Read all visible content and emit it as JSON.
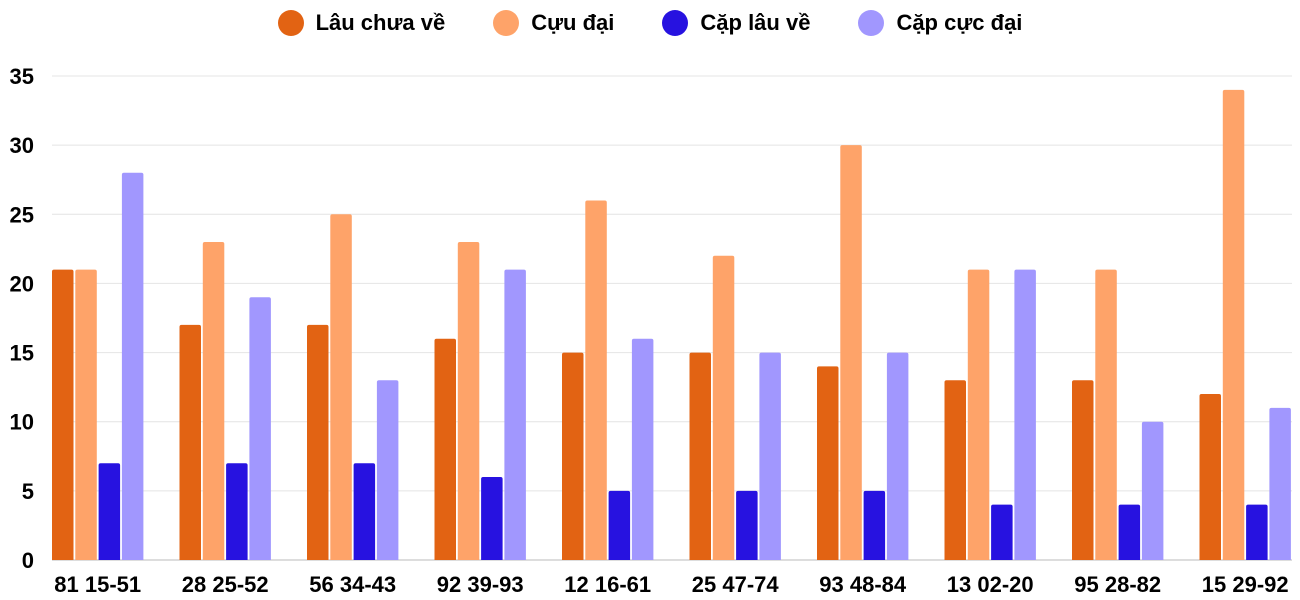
{
  "chart_data": {
    "type": "bar",
    "categories": [
      "81 15-51",
      "28 25-52",
      "56 34-43",
      "92 39-93",
      "12 16-61",
      "25 47-74",
      "93 48-84",
      "13 02-20",
      "95 28-82",
      "15 29-92"
    ],
    "series": [
      {
        "name": "Lâu chưa về",
        "color": "#e26313",
        "values": [
          21,
          17,
          17,
          16,
          15,
          15,
          14,
          13,
          13,
          12
        ]
      },
      {
        "name": "Cựu đại",
        "color": "#fea369",
        "values": [
          21,
          23,
          25,
          23,
          26,
          22,
          30,
          21,
          21,
          34
        ]
      },
      {
        "name": "Cặp lâu về",
        "color": "#2712e0",
        "values": [
          7,
          7,
          7,
          6,
          5,
          5,
          5,
          4,
          4,
          4
        ]
      },
      {
        "name": "Cặp cực đại",
        "color": "#a197fe",
        "values": [
          28,
          19,
          13,
          21,
          16,
          15,
          15,
          21,
          10,
          11
        ]
      }
    ],
    "yticks": [
      0,
      5,
      10,
      15,
      20,
      25,
      30,
      35
    ],
    "ylim": [
      0,
      35
    ],
    "grid": true,
    "legend": "top"
  }
}
